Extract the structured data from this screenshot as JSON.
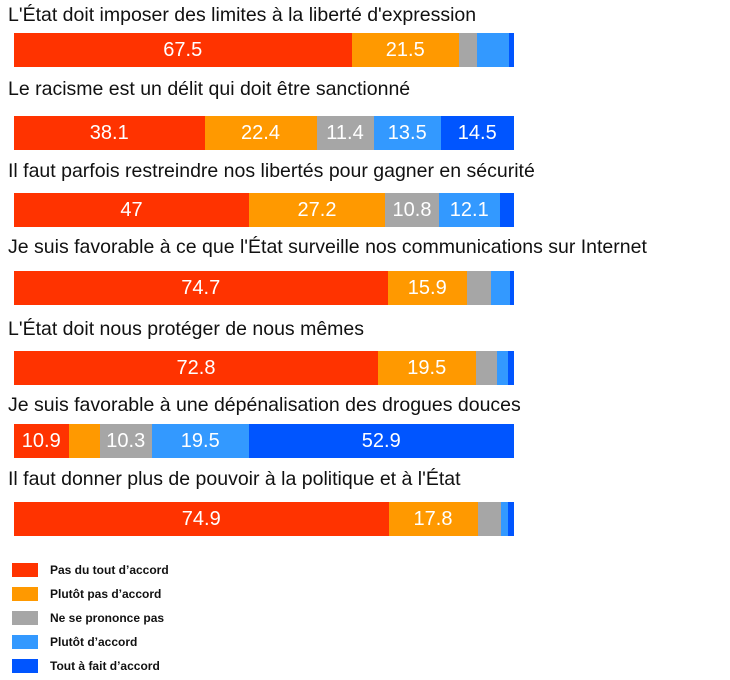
{
  "chart_data": {
    "type": "bar",
    "orientation": "horizontal",
    "stacked": true,
    "grid": false,
    "legend_position": "bottom-left",
    "categories": [
      "L'État doit imposer des limites à la liberté d'expression",
      "Le racisme est un délit qui doit être sanctionné",
      "Il faut parfois restreindre nos libertés pour gagner en sécurité",
      "Je suis favorable à ce que l'État surveille nos communications sur Internet",
      "L'État doit nous protéger de nous mêmes",
      "Je suis favorable à une dépénalisation des drogues douces",
      "Il faut donner plus de pouvoir à la politique et à l'État"
    ],
    "series": [
      {
        "name": "Pas du tout d’accord",
        "color": "#ff3300",
        "values": [
          67.5,
          38.1,
          47,
          74.7,
          72.8,
          10.9,
          74.9
        ]
      },
      {
        "name": "Plutôt pas d’accord",
        "color": "#ff9900",
        "values": [
          21.5,
          22.4,
          27.2,
          15.9,
          19.5,
          6.3,
          17.8
        ]
      },
      {
        "name": "Ne se prononce pas",
        "color": "#a6a6a6",
        "values": [
          3.5,
          11.4,
          10.8,
          4.8,
          4.3,
          10.3,
          4.6
        ]
      },
      {
        "name": "Plutôt d’accord",
        "color": "#3399ff",
        "values": [
          6.5,
          13.5,
          12.1,
          3.8,
          2.2,
          19.5,
          1.4
        ]
      },
      {
        "name": "Tout à fait d’accord",
        "color": "#0055ff",
        "values": [
          1.0,
          14.5,
          2.9,
          0.8,
          1.2,
          52.9,
          1.3
        ]
      }
    ],
    "labels": [
      [
        "67.5",
        "21.5",
        "",
        "",
        ""
      ],
      [
        "38.1",
        "22.4",
        "11.4",
        "13.5",
        "14.5"
      ],
      [
        "47",
        "27.2",
        "10.8",
        "12.1",
        ""
      ],
      [
        "74.7",
        "15.9",
        "",
        "",
        ""
      ],
      [
        "72.8",
        "19.5",
        "",
        "",
        ""
      ],
      [
        "10.9",
        "",
        "10.3",
        "19.5",
        "52.9"
      ],
      [
        "74.9",
        "17.8",
        "",
        "",
        ""
      ]
    ],
    "xlim": [
      0,
      100
    ]
  }
}
